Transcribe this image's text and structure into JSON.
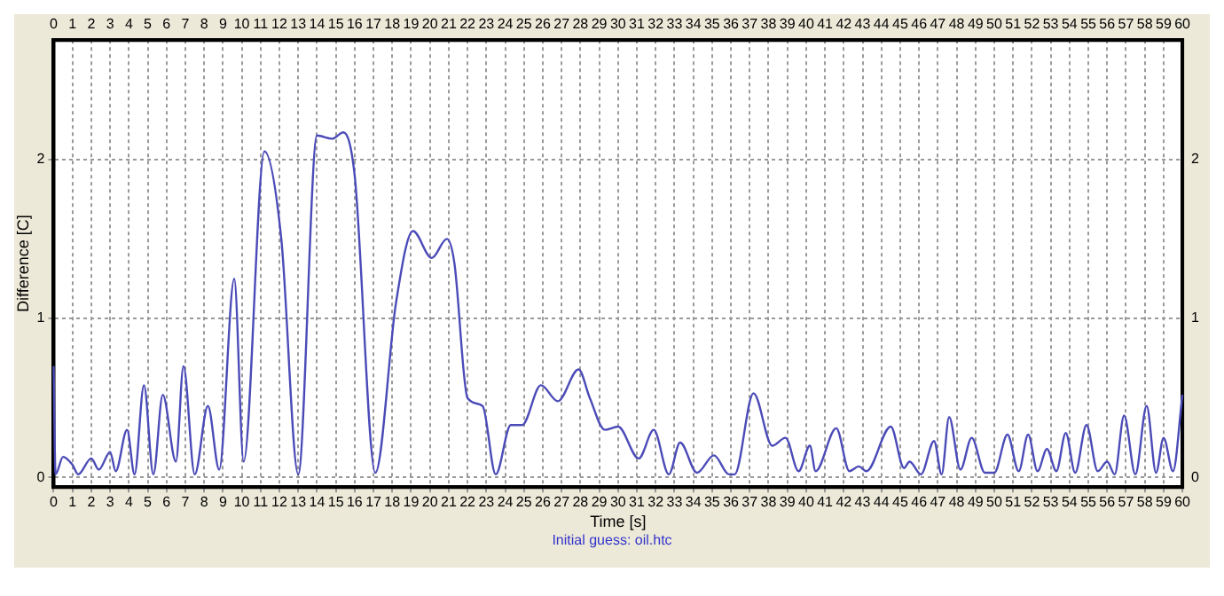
{
  "chart_data": {
    "type": "line",
    "xlabel": "Time [s]",
    "ylabel": "Difference [C]",
    "annotations": [
      "Initial guess: oil.htc"
    ],
    "xlim": [
      0,
      60
    ],
    "xticks": [
      0,
      1,
      2,
      3,
      4,
      5,
      6,
      7,
      8,
      9,
      10,
      11,
      12,
      13,
      14,
      15,
      16,
      17,
      18,
      19,
      20,
      21,
      22,
      23,
      24,
      25,
      26,
      27,
      28,
      29,
      30,
      31,
      32,
      33,
      34,
      35,
      36,
      37,
      38,
      39,
      40,
      41,
      42,
      43,
      44,
      45,
      46,
      47,
      48,
      49,
      50,
      51,
      52,
      53,
      54,
      55,
      56,
      57,
      58,
      59,
      60
    ],
    "x2lim": [
      0,
      60
    ],
    "x2ticks": [
      0,
      1,
      2,
      3,
      4,
      5,
      6,
      7,
      8,
      9,
      10,
      11,
      12,
      13,
      14,
      15,
      16,
      17,
      18,
      19,
      20,
      21,
      22,
      23,
      24,
      25,
      26,
      27,
      28,
      29,
      30,
      31,
      32,
      33,
      34,
      35,
      36,
      37,
      38,
      39,
      40,
      41,
      42,
      43,
      44,
      45,
      46,
      47,
      48,
      49,
      50,
      51,
      52,
      53,
      54,
      55,
      56,
      57,
      58,
      59,
      60
    ],
    "ylim": [
      -0.06,
      2.75
    ],
    "yticks": [
      0,
      1,
      2
    ],
    "y2lim": [
      -0.06,
      2.75
    ],
    "y2ticks": [
      0,
      1,
      2
    ],
    "grid": true,
    "marker": "none",
    "line_style": "solid",
    "series": [
      {
        "color": "#4b4bb8",
        "x": [
          0,
          0.1,
          0.5,
          1,
          1.3,
          2,
          2.4,
          3,
          3.3,
          3.9,
          4.3,
          4.8,
          5.3,
          5.8,
          6.5,
          6.9,
          7.5,
          8.2,
          8.8,
          9.6,
          10.1,
          11.2,
          12.1,
          13,
          14,
          14.8,
          15.4,
          16,
          17.1,
          18.2,
          19.1,
          20.1,
          20.9,
          21.3,
          22,
          22.8,
          23.5,
          24.3,
          24.9,
          25.9,
          26.8,
          27.9,
          28.5,
          29.3,
          30,
          31.1,
          31.9,
          32.7,
          33.3,
          34.2,
          35.1,
          35.9,
          36.2,
          37.2,
          38.2,
          38.9,
          39.6,
          40.2,
          40.5,
          41.6,
          42.3,
          42.8,
          43.2,
          44.5,
          45.2,
          45.5,
          46.1,
          46.8,
          47.2,
          47.6,
          48.2,
          48.8,
          49.5,
          50,
          50.7,
          51.3,
          51.8,
          52.3,
          52.8,
          53.3,
          53.8,
          54.3,
          54.9,
          55.5,
          56,
          56.4,
          56.9,
          57.5,
          58.1,
          58.6,
          59,
          59.5,
          60
        ],
        "values": [
          0.7,
          0.02,
          0.13,
          0.08,
          0.02,
          0.12,
          0.05,
          0.16,
          0.04,
          0.3,
          0.02,
          0.58,
          0.02,
          0.52,
          0.1,
          0.7,
          0.02,
          0.45,
          0.05,
          1.25,
          0.1,
          2.05,
          1.5,
          0.02,
          2.15,
          2.13,
          2.17,
          1.9,
          0.03,
          1.1,
          1.55,
          1.38,
          1.5,
          1.35,
          0.5,
          0.45,
          0.02,
          0.33,
          0.33,
          0.58,
          0.48,
          0.68,
          0.5,
          0.3,
          0.32,
          0.12,
          0.3,
          0.02,
          0.22,
          0.03,
          0.14,
          0.02,
          0.02,
          0.53,
          0.2,
          0.25,
          0.04,
          0.2,
          0.04,
          0.31,
          0.04,
          0.07,
          0.04,
          0.32,
          0.06,
          0.1,
          0.02,
          0.23,
          0.02,
          0.38,
          0.05,
          0.25,
          0.03,
          0.03,
          0.27,
          0.04,
          0.27,
          0.04,
          0.18,
          0.04,
          0.28,
          0.03,
          0.33,
          0.04,
          0.1,
          0.02,
          0.39,
          0.02,
          0.45,
          0.03,
          0.25,
          0.04,
          0.52
        ]
      }
    ]
  }
}
